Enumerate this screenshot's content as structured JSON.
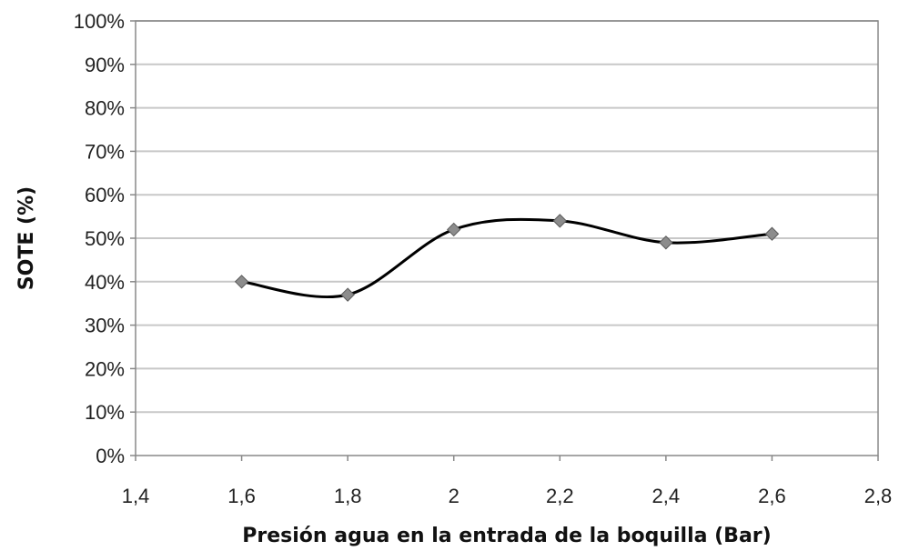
{
  "chart_data": {
    "type": "scatter",
    "title": "",
    "xlabel": "Presión agua en la entrada de la boquilla (Bar)",
    "ylabel": "SOTE (%)",
    "xlim": [
      1.4,
      2.8
    ],
    "ylim": [
      0,
      100
    ],
    "x_ticks": [
      "1,4",
      "1,6",
      "1,8",
      "2",
      "2,2",
      "2,4",
      "2,6",
      "2,8"
    ],
    "y_ticks": [
      "0%",
      "10%",
      "20%",
      "30%",
      "40%",
      "50%",
      "60%",
      "70%",
      "80%",
      "90%",
      "100%"
    ],
    "grid": "horizontal",
    "line_style": "smoothed",
    "marker": "diamond",
    "series": [
      {
        "x": [
          1.6,
          1.8,
          2.0,
          2.2,
          2.4,
          2.6
        ],
        "y": [
          40,
          37,
          52,
          54,
          49,
          51
        ],
        "line_color": "#000000",
        "marker_color": "#8c8c8c"
      }
    ]
  }
}
